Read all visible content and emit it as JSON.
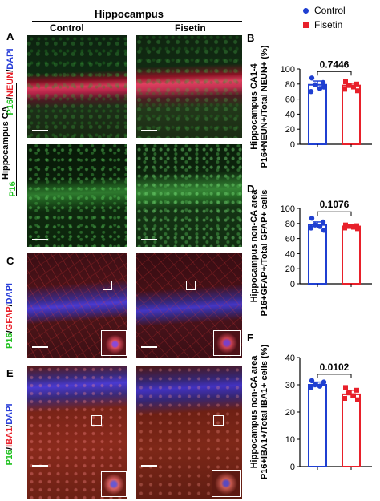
{
  "figure": {
    "header": "Hippocampus",
    "group_control": "Control",
    "group_fisetin": "Fisetin",
    "region_label": "Hippocampus CA",
    "panel_letters": [
      "A",
      "B",
      "C",
      "D",
      "E",
      "F"
    ],
    "row_labels": {
      "a1": {
        "p16": "P16",
        "sep1": "/",
        "mark": "NEUN",
        "sep2": "/",
        "dapi": "DAPI"
      },
      "a2": {
        "p16": "P16"
      },
      "c": {
        "p16": "P16",
        "sep1": "/",
        "mark": "GFAP",
        "sep2": "/",
        "dapi": "DAPI"
      },
      "e": {
        "p16": "P16",
        "sep1": "/",
        "mark": "IBA1",
        "sep2": "/",
        "dapi": "DAPI"
      }
    },
    "legend": {
      "control": "Control",
      "fisetin": "Fisetin"
    },
    "colors": {
      "control": "#1f3fd1",
      "fisetin": "#e8202a",
      "p16_green": "#22c222",
      "marker_red": "#e8202a",
      "dapi_blue": "#2a3fd8"
    }
  },
  "chart_data": [
    {
      "panel": "B",
      "type": "bar",
      "ylabel_line1": "Hippocampus CA1-4",
      "ylabel_line2": "P16+NEUN+/Total NEUN+ (%)",
      "ylim": [
        0,
        100
      ],
      "yticks": [
        "0",
        "20",
        "40",
        "60",
        "80",
        "100"
      ],
      "pvalue": "0.7446",
      "series": [
        {
          "name": "Control",
          "mean": 79,
          "sem": 5,
          "points": [
            88,
            82,
            79,
            74,
            70,
            76
          ]
        },
        {
          "name": "Fisetin",
          "mean": 78,
          "sem": 3,
          "points": [
            83,
            80,
            78,
            76,
            73,
            71
          ]
        }
      ]
    },
    {
      "panel": "D",
      "type": "bar",
      "ylabel_line1": "Hippocampus non-CA area",
      "ylabel_line2": "P16+GFAP+/Total GFAP+ cells(%)",
      "ylim": [
        0,
        100
      ],
      "yticks": [
        "0",
        "20",
        "40",
        "60",
        "80",
        "100"
      ],
      "pvalue": "0.1076",
      "series": [
        {
          "name": "Control",
          "mean": 78,
          "sem": 4,
          "points": [
            87,
            82,
            78,
            76,
            74,
            71
          ]
        },
        {
          "name": "Fisetin",
          "mean": 76,
          "sem": 2,
          "points": [
            78,
            77,
            76,
            75,
            74,
            73
          ]
        }
      ]
    },
    {
      "panel": "F",
      "type": "bar",
      "ylabel_line1": "Hippocampus non-CA area",
      "ylabel_line2": "P16+IBA1+/Total IBA1+ cells (%)",
      "ylim": [
        0,
        40
      ],
      "yticks": [
        "0",
        "10",
        "20",
        "30",
        "40"
      ],
      "pvalue": "0.0102",
      "series": [
        {
          "name": "Control",
          "mean": 30,
          "sem": 1,
          "points": [
            31.5,
            30.5,
            30,
            29.5,
            29,
            31
          ]
        },
        {
          "name": "Fisetin",
          "mean": 26.5,
          "sem": 1.5,
          "points": [
            29,
            28,
            27,
            26,
            25,
            24.5
          ]
        }
      ]
    }
  ]
}
